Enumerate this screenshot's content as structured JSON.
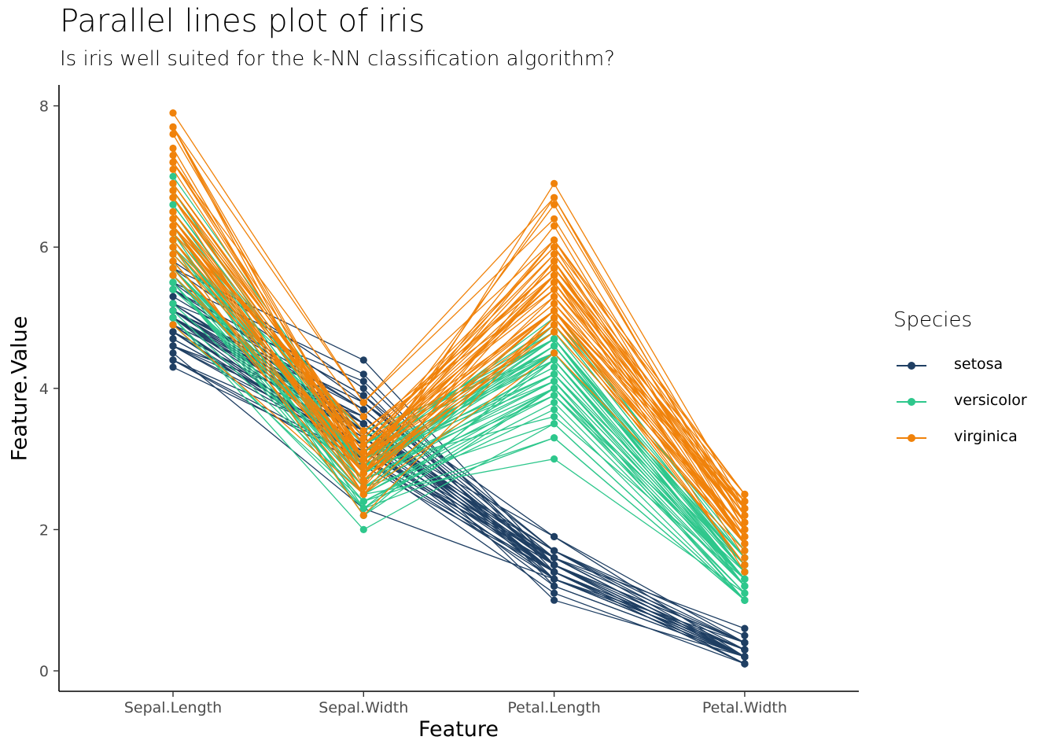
{
  "chart_data": {
    "type": "line",
    "title": "Parallel lines plot of iris",
    "subtitle": "Is iris well suited for the k-NN classification algorithm?",
    "xlabel": "Feature",
    "ylabel": "Feature.Value",
    "categories": [
      "Sepal.Length",
      "Sepal.Width",
      "Petal.Length",
      "Petal.Width"
    ],
    "ylim": [
      -0.3,
      8.2
    ],
    "yticks": [
      0,
      2,
      4,
      6,
      8
    ],
    "grid": false,
    "legend_title": "Species",
    "legend_position": "right",
    "series": [
      {
        "name": "setosa",
        "color": "#1F3F63",
        "records": [
          [
            5.1,
            3.5,
            1.4,
            0.2
          ],
          [
            4.9,
            3.0,
            1.4,
            0.2
          ],
          [
            4.7,
            3.2,
            1.3,
            0.2
          ],
          [
            4.6,
            3.1,
            1.5,
            0.2
          ],
          [
            5.0,
            3.6,
            1.4,
            0.2
          ],
          [
            5.4,
            3.9,
            1.7,
            0.4
          ],
          [
            4.6,
            3.4,
            1.4,
            0.3
          ],
          [
            5.0,
            3.4,
            1.5,
            0.2
          ],
          [
            4.4,
            2.9,
            1.4,
            0.2
          ],
          [
            4.9,
            3.1,
            1.5,
            0.1
          ],
          [
            5.4,
            3.7,
            1.5,
            0.2
          ],
          [
            4.8,
            3.4,
            1.6,
            0.2
          ],
          [
            4.8,
            3.0,
            1.4,
            0.1
          ],
          [
            4.3,
            3.0,
            1.1,
            0.1
          ],
          [
            5.8,
            4.0,
            1.2,
            0.2
          ],
          [
            5.7,
            4.4,
            1.5,
            0.4
          ],
          [
            5.4,
            3.9,
            1.3,
            0.4
          ],
          [
            5.1,
            3.5,
            1.4,
            0.3
          ],
          [
            5.7,
            3.8,
            1.7,
            0.3
          ],
          [
            5.1,
            3.8,
            1.5,
            0.3
          ],
          [
            5.4,
            3.4,
            1.7,
            0.2
          ],
          [
            5.1,
            3.7,
            1.5,
            0.4
          ],
          [
            4.6,
            3.6,
            1.0,
            0.2
          ],
          [
            5.1,
            3.3,
            1.7,
            0.5
          ],
          [
            4.8,
            3.4,
            1.9,
            0.2
          ],
          [
            5.0,
            3.0,
            1.6,
            0.2
          ],
          [
            5.0,
            3.4,
            1.6,
            0.4
          ],
          [
            5.2,
            3.5,
            1.5,
            0.2
          ],
          [
            5.2,
            3.4,
            1.4,
            0.2
          ],
          [
            4.7,
            3.2,
            1.6,
            0.2
          ],
          [
            4.8,
            3.1,
            1.6,
            0.2
          ],
          [
            5.4,
            3.4,
            1.5,
            0.4
          ],
          [
            5.2,
            4.1,
            1.5,
            0.1
          ],
          [
            5.5,
            4.2,
            1.4,
            0.2
          ],
          [
            4.9,
            3.1,
            1.5,
            0.2
          ],
          [
            5.0,
            3.2,
            1.2,
            0.2
          ],
          [
            5.5,
            3.5,
            1.3,
            0.2
          ],
          [
            4.9,
            3.6,
            1.4,
            0.1
          ],
          [
            4.4,
            3.0,
            1.3,
            0.2
          ],
          [
            5.1,
            3.4,
            1.5,
            0.2
          ],
          [
            5.0,
            3.5,
            1.3,
            0.3
          ],
          [
            4.5,
            2.3,
            1.3,
            0.3
          ],
          [
            4.4,
            3.2,
            1.3,
            0.2
          ],
          [
            5.0,
            3.5,
            1.6,
            0.6
          ],
          [
            5.1,
            3.8,
            1.9,
            0.4
          ],
          [
            4.8,
            3.0,
            1.4,
            0.3
          ],
          [
            5.1,
            3.8,
            1.6,
            0.2
          ],
          [
            4.6,
            3.2,
            1.4,
            0.2
          ],
          [
            5.3,
            3.7,
            1.5,
            0.2
          ],
          [
            5.0,
            3.3,
            1.4,
            0.2
          ]
        ]
      },
      {
        "name": "versicolor",
        "color": "#2EC78C",
        "records": [
          [
            7.0,
            3.2,
            4.7,
            1.4
          ],
          [
            6.4,
            3.2,
            4.5,
            1.5
          ],
          [
            6.9,
            3.1,
            4.9,
            1.5
          ],
          [
            5.5,
            2.3,
            4.0,
            1.3
          ],
          [
            6.5,
            2.8,
            4.6,
            1.5
          ],
          [
            5.7,
            2.8,
            4.5,
            1.3
          ],
          [
            6.3,
            3.3,
            4.7,
            1.6
          ],
          [
            4.9,
            2.4,
            3.3,
            1.0
          ],
          [
            6.6,
            2.9,
            4.6,
            1.3
          ],
          [
            5.2,
            2.7,
            3.9,
            1.4
          ],
          [
            5.0,
            2.0,
            3.5,
            1.0
          ],
          [
            5.9,
            3.0,
            4.2,
            1.5
          ],
          [
            6.0,
            2.2,
            4.0,
            1.0
          ],
          [
            6.1,
            2.9,
            4.7,
            1.4
          ],
          [
            5.6,
            2.9,
            3.6,
            1.3
          ],
          [
            6.7,
            3.1,
            4.4,
            1.4
          ],
          [
            5.6,
            3.0,
            4.5,
            1.5
          ],
          [
            5.8,
            2.7,
            4.1,
            1.0
          ],
          [
            6.2,
            2.2,
            4.5,
            1.5
          ],
          [
            5.6,
            2.5,
            3.9,
            1.1
          ],
          [
            5.9,
            3.2,
            4.8,
            1.8
          ],
          [
            6.1,
            2.8,
            4.0,
            1.3
          ],
          [
            6.3,
            2.5,
            4.9,
            1.5
          ],
          [
            6.1,
            2.8,
            4.7,
            1.2
          ],
          [
            6.4,
            2.9,
            4.3,
            1.3
          ],
          [
            6.6,
            3.0,
            4.4,
            1.4
          ],
          [
            6.8,
            2.8,
            4.8,
            1.4
          ],
          [
            6.7,
            3.0,
            5.0,
            1.7
          ],
          [
            6.0,
            2.9,
            4.5,
            1.5
          ],
          [
            5.7,
            2.6,
            3.5,
            1.0
          ],
          [
            5.5,
            2.4,
            3.8,
            1.1
          ],
          [
            5.5,
            2.4,
            3.7,
            1.0
          ],
          [
            5.8,
            2.7,
            3.9,
            1.2
          ],
          [
            6.0,
            2.7,
            5.1,
            1.6
          ],
          [
            5.4,
            3.0,
            4.5,
            1.5
          ],
          [
            6.0,
            3.4,
            4.5,
            1.6
          ],
          [
            6.7,
            3.1,
            4.7,
            1.5
          ],
          [
            6.3,
            2.3,
            4.4,
            1.3
          ],
          [
            5.6,
            3.0,
            4.1,
            1.3
          ],
          [
            5.5,
            2.5,
            4.0,
            1.3
          ],
          [
            5.5,
            2.6,
            4.4,
            1.2
          ],
          [
            6.1,
            3.0,
            4.6,
            1.4
          ],
          [
            5.8,
            2.6,
            4.0,
            1.2
          ],
          [
            5.0,
            2.3,
            3.3,
            1.0
          ],
          [
            5.6,
            2.7,
            4.2,
            1.3
          ],
          [
            5.7,
            3.0,
            4.2,
            1.2
          ],
          [
            5.7,
            2.9,
            4.2,
            1.3
          ],
          [
            6.2,
            2.9,
            4.3,
            1.3
          ],
          [
            5.1,
            2.5,
            3.0,
            1.1
          ],
          [
            5.7,
            2.8,
            4.1,
            1.3
          ]
        ]
      },
      {
        "name": "virginica",
        "color": "#F0820A",
        "records": [
          [
            6.3,
            3.3,
            6.0,
            2.5
          ],
          [
            5.8,
            2.7,
            5.1,
            1.9
          ],
          [
            7.1,
            3.0,
            5.9,
            2.1
          ],
          [
            6.3,
            2.9,
            5.6,
            1.8
          ],
          [
            6.5,
            3.0,
            5.8,
            2.2
          ],
          [
            7.6,
            3.0,
            6.6,
            2.1
          ],
          [
            4.9,
            2.5,
            4.5,
            1.7
          ],
          [
            7.3,
            2.9,
            6.3,
            1.8
          ],
          [
            6.7,
            2.5,
            5.8,
            1.8
          ],
          [
            7.2,
            3.6,
            6.1,
            2.5
          ],
          [
            6.5,
            3.2,
            5.1,
            2.0
          ],
          [
            6.4,
            2.7,
            5.3,
            1.9
          ],
          [
            6.8,
            3.0,
            5.5,
            2.1
          ],
          [
            5.7,
            2.5,
            5.0,
            2.0
          ],
          [
            5.8,
            2.8,
            5.1,
            2.4
          ],
          [
            6.4,
            3.2,
            5.3,
            2.3
          ],
          [
            6.5,
            3.0,
            5.5,
            1.8
          ],
          [
            7.7,
            3.8,
            6.7,
            2.2
          ],
          [
            7.7,
            2.6,
            6.9,
            2.3
          ],
          [
            6.0,
            2.2,
            5.0,
            1.5
          ],
          [
            6.9,
            3.2,
            5.7,
            2.3
          ],
          [
            5.6,
            2.8,
            4.9,
            2.0
          ],
          [
            7.7,
            2.8,
            6.7,
            2.0
          ],
          [
            6.3,
            2.7,
            4.9,
            1.8
          ],
          [
            6.7,
            3.3,
            5.7,
            2.1
          ],
          [
            7.2,
            3.2,
            6.0,
            1.8
          ],
          [
            6.2,
            2.8,
            4.8,
            1.8
          ],
          [
            6.1,
            3.0,
            4.9,
            1.8
          ],
          [
            6.4,
            2.8,
            5.6,
            2.1
          ],
          [
            7.2,
            3.0,
            5.8,
            1.6
          ],
          [
            7.4,
            2.8,
            6.1,
            1.9
          ],
          [
            7.9,
            3.8,
            6.4,
            2.0
          ],
          [
            6.4,
            2.8,
            5.6,
            2.2
          ],
          [
            6.3,
            2.8,
            5.1,
            1.5
          ],
          [
            6.1,
            2.6,
            5.6,
            1.4
          ],
          [
            7.7,
            3.0,
            6.1,
            2.3
          ],
          [
            6.3,
            3.4,
            5.6,
            2.4
          ],
          [
            6.4,
            3.1,
            5.5,
            1.8
          ],
          [
            6.0,
            3.0,
            4.8,
            1.8
          ],
          [
            6.9,
            3.1,
            5.4,
            2.1
          ],
          [
            6.7,
            3.1,
            5.6,
            2.4
          ],
          [
            6.9,
            3.1,
            5.1,
            2.3
          ],
          [
            5.8,
            2.7,
            5.1,
            1.9
          ],
          [
            6.8,
            3.2,
            5.9,
            2.3
          ],
          [
            6.7,
            3.3,
            5.7,
            2.5
          ],
          [
            6.7,
            3.0,
            5.2,
            2.3
          ],
          [
            6.3,
            2.5,
            5.0,
            1.9
          ],
          [
            6.5,
            3.0,
            5.2,
            2.0
          ],
          [
            6.2,
            3.4,
            5.4,
            2.3
          ],
          [
            5.9,
            3.0,
            5.1,
            1.8
          ]
        ]
      }
    ]
  }
}
